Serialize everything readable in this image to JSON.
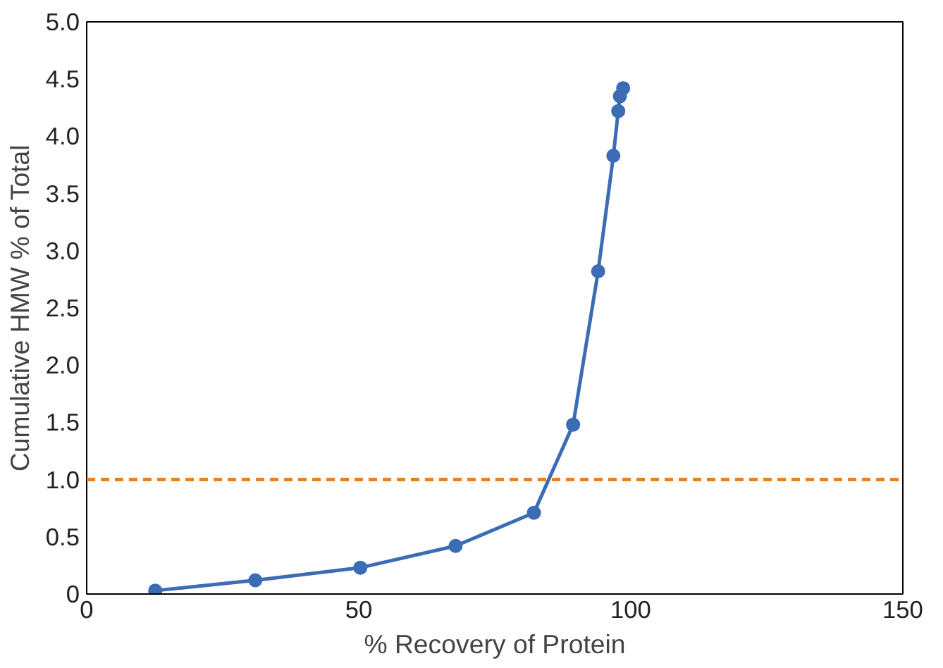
{
  "chart_data": {
    "type": "line",
    "xlabel": "% Recovery of Protein",
    "ylabel": "Cumulative HMW % of Total",
    "x": [
      12.6,
      31,
      50.3,
      67.8,
      82.2,
      89.4,
      94,
      96.8,
      97.7,
      98,
      98.6
    ],
    "series": [
      {
        "color": "#3b6cb4",
        "values": [
          0.03,
          0.12,
          0.23,
          0.42,
          0.71,
          1.48,
          2.82,
          3.83,
          4.22,
          4.35,
          4.42
        ]
      }
    ],
    "marker": "circle",
    "line_style": "solid",
    "grid": false,
    "xlim": [
      0,
      150
    ],
    "xticks": [
      0,
      50,
      100,
      150
    ],
    "ylim": [
      0,
      5
    ],
    "yticks": [
      0,
      {
        "value": 0.5,
        "label": "0.5"
      },
      {
        "value": 1,
        "label": "1.0"
      },
      {
        "value": 1.5,
        "label": "1.5"
      },
      {
        "value": 2,
        "label": "2.0"
      },
      {
        "value": 2.5,
        "label": "2.5"
      },
      {
        "value": 3,
        "label": "3.0"
      },
      {
        "value": 3.5,
        "label": "3.5"
      },
      {
        "value": 4,
        "label": "4.0"
      },
      {
        "value": 4.5,
        "label": "4.5"
      },
      {
        "value": 5,
        "label": "5.0"
      }
    ],
    "ref_lines": [
      {
        "axis": "y",
        "value": 1,
        "color": "#f07f1a",
        "line_style": "dashed"
      }
    ]
  }
}
